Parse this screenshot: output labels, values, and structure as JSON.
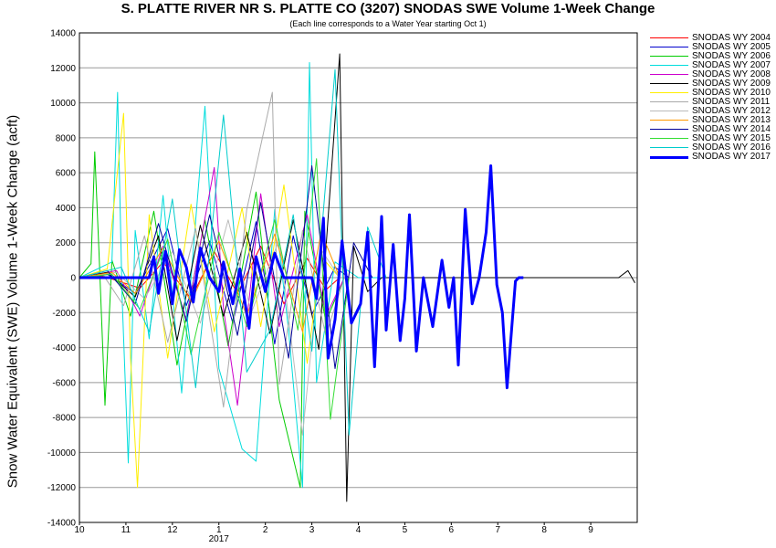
{
  "chart_data": {
    "type": "line",
    "title": "S. PLATTE RIVER NR S. PLATTE CO (3207) SNODAS SWE Volume 1-Week Change",
    "subtitle": "(Each line corresponds to a Water Year starting Oct 1)",
    "ylabel": "Snow Water Equivalent (SWE) Volume 1-Week Change (acft)",
    "xlabel": "",
    "ylim": [
      -14000,
      14000
    ],
    "y_ticks": [
      "14000",
      "12000",
      "10000",
      "8000",
      "6000",
      "4000",
      "2000",
      "0",
      "-2000",
      "-4000",
      "-6000",
      "-8000",
      "-10000",
      "-12000",
      "-14000"
    ],
    "x_ticks": [
      "10",
      "11",
      "12",
      "1",
      "2",
      "3",
      "4",
      "5",
      "6",
      "7",
      "8",
      "9"
    ],
    "x_year_label": "2017",
    "grid": true,
    "legend_position": "right",
    "series": [
      {
        "name": "SNODAS WY 2004",
        "color": "#ff0000",
        "width": 1,
        "points": [
          [
            0.0,
            0
          ],
          [
            0.5,
            100
          ],
          [
            1.3,
            -600
          ],
          [
            1.8,
            900
          ],
          [
            2.4,
            -1200
          ],
          [
            2.9,
            1500
          ],
          [
            3.4,
            -900
          ],
          [
            3.9,
            1800
          ],
          [
            4.4,
            -1500
          ],
          [
            4.9,
            1100
          ],
          [
            5.3,
            -700
          ],
          [
            5.6,
            0
          ]
        ]
      },
      {
        "name": "SNODAS WY 2005",
        "color": "#0000cc",
        "width": 1,
        "points": [
          [
            0.0,
            0
          ],
          [
            0.6,
            200
          ],
          [
            1.2,
            -900
          ],
          [
            1.9,
            2800
          ],
          [
            2.3,
            -1600
          ],
          [
            2.8,
            2100
          ],
          [
            3.3,
            -2600
          ],
          [
            3.8,
            3200
          ],
          [
            4.2,
            -3800
          ],
          [
            4.6,
            2400
          ],
          [
            5.0,
            -2100
          ],
          [
            5.5,
            600
          ],
          [
            5.8,
            0
          ]
        ]
      },
      {
        "name": "SNODAS WY 2006",
        "color": "#00cc00",
        "width": 1,
        "points": [
          [
            0.0,
            0
          ],
          [
            0.25,
            800
          ],
          [
            0.33,
            7200
          ],
          [
            0.42,
            1500
          ],
          [
            0.55,
            -7300
          ],
          [
            0.7,
            1000
          ],
          [
            1.1,
            -2200
          ],
          [
            1.6,
            3800
          ],
          [
            2.1,
            -5000
          ],
          [
            2.7,
            3300
          ],
          [
            3.2,
            -3900
          ],
          [
            3.8,
            4900
          ],
          [
            4.3,
            -7000
          ],
          [
            4.75,
            -12000
          ],
          [
            4.85,
            3800
          ],
          [
            5.3,
            -2500
          ],
          [
            5.7,
            0
          ]
        ]
      },
      {
        "name": "SNODAS WY 2007",
        "color": "#00dddd",
        "width": 1,
        "points": [
          [
            0.0,
            0
          ],
          [
            0.7,
            900
          ],
          [
            0.82,
            10600
          ],
          [
            0.92,
            -1200
          ],
          [
            1.05,
            -10600
          ],
          [
            1.2,
            2700
          ],
          [
            1.5,
            -3500
          ],
          [
            1.8,
            4700
          ],
          [
            2.2,
            -6600
          ],
          [
            2.7,
            9800
          ],
          [
            3.0,
            -5200
          ],
          [
            3.5,
            -9800
          ],
          [
            3.8,
            -10500
          ],
          [
            4.2,
            3900
          ],
          [
            4.5,
            -3000
          ],
          [
            4.8,
            -12000
          ],
          [
            4.95,
            12300
          ],
          [
            5.1,
            -6000
          ],
          [
            5.5,
            900
          ],
          [
            6.0,
            0
          ],
          [
            11.6,
            0
          ]
        ]
      },
      {
        "name": "SNODAS WY 2008",
        "color": "#cc00cc",
        "width": 1,
        "points": [
          [
            0.0,
            0
          ],
          [
            0.8,
            400
          ],
          [
            1.3,
            -2200
          ],
          [
            1.8,
            1800
          ],
          [
            2.3,
            -2400
          ],
          [
            2.9,
            6300
          ],
          [
            3.1,
            -1800
          ],
          [
            3.4,
            -7300
          ],
          [
            3.9,
            4800
          ],
          [
            4.3,
            -2800
          ],
          [
            4.9,
            3600
          ],
          [
            5.3,
            -2200
          ],
          [
            5.7,
            0
          ]
        ]
      },
      {
        "name": "SNODAS WY 2009",
        "color": "#000000",
        "width": 1,
        "points": [
          [
            0.0,
            0
          ],
          [
            0.6,
            300
          ],
          [
            1.2,
            -1100
          ],
          [
            1.7,
            2400
          ],
          [
            2.1,
            -3600
          ],
          [
            2.6,
            3000
          ],
          [
            3.1,
            -2200
          ],
          [
            3.6,
            2600
          ],
          [
            4.1,
            -3200
          ],
          [
            4.6,
            3300
          ],
          [
            5.15,
            -4100
          ],
          [
            5.6,
            12800
          ],
          [
            5.75,
            -12800
          ],
          [
            5.9,
            1800
          ],
          [
            6.2,
            -800
          ],
          [
            6.5,
            0
          ],
          [
            11.6,
            0
          ],
          [
            11.8,
            400
          ],
          [
            11.95,
            -300
          ]
        ]
      },
      {
        "name": "SNODAS WY 2010",
        "color": "#ffee00",
        "width": 1,
        "points": [
          [
            0.0,
            0
          ],
          [
            0.6,
            500
          ],
          [
            0.95,
            9400
          ],
          [
            1.1,
            -4600
          ],
          [
            1.25,
            -12000
          ],
          [
            1.5,
            3600
          ],
          [
            1.9,
            -4600
          ],
          [
            2.4,
            4200
          ],
          [
            2.9,
            -3100
          ],
          [
            3.5,
            4000
          ],
          [
            3.9,
            -2800
          ],
          [
            4.4,
            5300
          ],
          [
            4.9,
            -4900
          ],
          [
            5.2,
            1200
          ],
          [
            5.6,
            0
          ]
        ]
      },
      {
        "name": "SNODAS WY 2011",
        "color": "#aaaaaa",
        "width": 1,
        "points": [
          [
            0.0,
            0
          ],
          [
            0.5,
            200
          ],
          [
            0.95,
            -1600
          ],
          [
            1.4,
            2400
          ],
          [
            1.9,
            -3700
          ],
          [
            2.5,
            2800
          ],
          [
            3.1,
            -7400
          ],
          [
            3.6,
            3900
          ],
          [
            4.15,
            10600
          ],
          [
            4.3,
            -6100
          ],
          [
            4.8,
            2700
          ],
          [
            5.3,
            -3300
          ],
          [
            5.7,
            0
          ]
        ]
      },
      {
        "name": "SNODAS WY 2012",
        "color": "#bbbbbb",
        "width": 1,
        "points": [
          [
            0.0,
            0
          ],
          [
            0.8,
            300
          ],
          [
            1.4,
            -1200
          ],
          [
            2.0,
            1500
          ],
          [
            2.6,
            -2600
          ],
          [
            3.2,
            3300
          ],
          [
            3.7,
            -2000
          ],
          [
            4.3,
            2200
          ],
          [
            4.8,
            -9000
          ],
          [
            5.2,
            1600
          ],
          [
            5.6,
            0
          ]
        ]
      },
      {
        "name": "SNODAS WY 2013",
        "color": "#ff9900",
        "width": 1,
        "points": [
          [
            0.0,
            0
          ],
          [
            0.7,
            300
          ],
          [
            1.2,
            -900
          ],
          [
            1.8,
            1700
          ],
          [
            2.4,
            -1400
          ],
          [
            3.0,
            2100
          ],
          [
            3.6,
            -2200
          ],
          [
            4.2,
            2500
          ],
          [
            4.8,
            -3100
          ],
          [
            5.2,
            2600
          ],
          [
            5.6,
            0
          ]
        ]
      },
      {
        "name": "SNODAS WY 2014",
        "color": "#000099",
        "width": 1,
        "points": [
          [
            0.0,
            0
          ],
          [
            0.6,
            400
          ],
          [
            1.2,
            -1500
          ],
          [
            1.7,
            3100
          ],
          [
            2.3,
            -2500
          ],
          [
            2.8,
            3600
          ],
          [
            3.4,
            -3300
          ],
          [
            3.9,
            4300
          ],
          [
            4.5,
            -4600
          ],
          [
            5.0,
            6400
          ],
          [
            5.5,
            -5200
          ],
          [
            5.9,
            2000
          ],
          [
            6.3,
            0
          ]
        ]
      },
      {
        "name": "SNODAS WY 2015",
        "color": "#33dd33",
        "width": 1,
        "points": [
          [
            0.0,
            0
          ],
          [
            0.7,
            200
          ],
          [
            1.3,
            -1800
          ],
          [
            1.9,
            2200
          ],
          [
            2.4,
            -4400
          ],
          [
            3.0,
            2600
          ],
          [
            3.6,
            -2800
          ],
          [
            4.2,
            3300
          ],
          [
            4.7,
            -3000
          ],
          [
            5.1,
            6800
          ],
          [
            5.4,
            -8100
          ],
          [
            5.8,
            0
          ]
        ]
      },
      {
        "name": "SNODAS WY 2016",
        "color": "#00cccc",
        "width": 1,
        "points": [
          [
            0.0,
            0
          ],
          [
            0.9,
            600
          ],
          [
            1.5,
            -3100
          ],
          [
            2.0,
            4500
          ],
          [
            2.5,
            -6300
          ],
          [
            3.1,
            9300
          ],
          [
            3.6,
            -5400
          ],
          [
            4.1,
            -3000
          ],
          [
            4.6,
            3600
          ],
          [
            5.0,
            -4200
          ],
          [
            5.5,
            11900
          ],
          [
            5.8,
            -9000
          ],
          [
            6.2,
            2900
          ],
          [
            6.6,
            0
          ]
        ]
      },
      {
        "name": "SNODAS WY 2017",
        "color": "#0000ff",
        "width": 3,
        "points": [
          [
            0.0,
            0
          ],
          [
            1.5,
            0
          ],
          [
            1.6,
            1200
          ],
          [
            1.7,
            -900
          ],
          [
            1.85,
            1500
          ],
          [
            2.0,
            -1500
          ],
          [
            2.15,
            1600
          ],
          [
            2.3,
            600
          ],
          [
            2.45,
            -1400
          ],
          [
            2.6,
            1700
          ],
          [
            2.8,
            0
          ],
          [
            3.0,
            -800
          ],
          [
            3.1,
            900
          ],
          [
            3.3,
            -1500
          ],
          [
            3.45,
            500
          ],
          [
            3.65,
            -2900
          ],
          [
            3.8,
            1200
          ],
          [
            4.0,
            -800
          ],
          [
            4.2,
            1400
          ],
          [
            4.4,
            0
          ],
          [
            5.0,
            0
          ],
          [
            5.1,
            -1200
          ],
          [
            5.25,
            3400
          ],
          [
            5.35,
            -4600
          ],
          [
            5.5,
            -2400
          ],
          [
            5.65,
            2100
          ],
          [
            5.85,
            -2600
          ],
          [
            6.05,
            -1500
          ],
          [
            6.2,
            2600
          ],
          [
            6.35,
            -5100
          ],
          [
            6.5,
            3500
          ],
          [
            6.6,
            -3000
          ],
          [
            6.75,
            1900
          ],
          [
            6.9,
            -3600
          ],
          [
            7.0,
            -1200
          ],
          [
            7.1,
            3600
          ],
          [
            7.25,
            -4200
          ],
          [
            7.4,
            0
          ],
          [
            7.6,
            -2800
          ],
          [
            7.8,
            1000
          ],
          [
            7.95,
            -1700
          ],
          [
            8.05,
            0
          ],
          [
            8.15,
            -5000
          ],
          [
            8.3,
            3900
          ],
          [
            8.45,
            -1500
          ],
          [
            8.6,
            0
          ],
          [
            8.75,
            2600
          ],
          [
            8.85,
            6400
          ],
          [
            8.98,
            -400
          ],
          [
            9.1,
            -2000
          ],
          [
            9.2,
            -6300
          ],
          [
            9.3,
            -2900
          ],
          [
            9.38,
            -200
          ],
          [
            9.45,
            0
          ],
          [
            9.55,
            0
          ]
        ]
      }
    ]
  }
}
